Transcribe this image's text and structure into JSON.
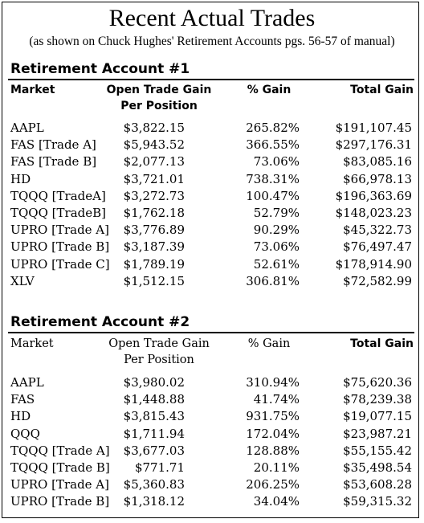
{
  "title": "Recent Actual Trades",
  "subtitle": "(as shown on Chuck Hughes' Retirement Accounts pgs. 56-57 of manual)",
  "account1": {
    "heading": "Retirement Account #1",
    "headers": {
      "market": "Market",
      "open_gain_1": "Open Trade Gain",
      "open_gain_2": "Per Position",
      "pct_gain": "% Gain",
      "total_gain": "Total Gain"
    },
    "rows": [
      {
        "market": "AAPL",
        "open": "$3,822.15",
        "pct": "265.82%",
        "total": "$191,107.45"
      },
      {
        "market": "FAS [Trade A]",
        "open": "$5,943.52",
        "pct": "366.55%",
        "total": "$297,176.31"
      },
      {
        "market": "FAS [Trade B]",
        "open": "$2,077.13",
        "pct": "73.06%",
        "total": "$83,085.16"
      },
      {
        "market": "HD",
        "open": "$3,721.01",
        "pct": "738.31%",
        "total": "$66,978.13"
      },
      {
        "market": "TQQQ [TradeA]",
        "open": "$3,272.73",
        "pct": "100.47%",
        "total": "$196,363.69"
      },
      {
        "market": "TQQQ [TradeB]",
        "open": "$1,762.18",
        "pct": "52.79%",
        "total": "$148,023.23"
      },
      {
        "market": "UPRO [Trade A]",
        "open": "$3,776.89",
        "pct": "90.29%",
        "total": "$45,322.73"
      },
      {
        "market": "UPRO [Trade B]",
        "open": "$3,187.39",
        "pct": "73.06%",
        "total": "$76,497.47"
      },
      {
        "market": "UPRO [Trade C]",
        "open": "$1,789.19",
        "pct": "52.61%",
        "total": "$178,914.90"
      },
      {
        "market": "XLV",
        "open": "$1,512.15",
        "pct": "306.81%",
        "total": "$72,582.99"
      }
    ]
  },
  "account2": {
    "heading": "Retirement Account #2",
    "headers": {
      "market": "Market",
      "open_gain_1": "Open Trade Gain",
      "open_gain_2": "Per Position",
      "pct_gain": "% Gain",
      "total_gain": "Total Gain"
    },
    "rows": [
      {
        "market": "AAPL",
        "open": "$3,980.02",
        "pct": "310.94%",
        "total": "$75,620.36"
      },
      {
        "market": "FAS",
        "open": "$1,448.88",
        "pct": "41.74%",
        "total": "$78,239.38"
      },
      {
        "market": "HD",
        "open": "$3,815.43",
        "pct": "931.75%",
        "total": "$19,077.15"
      },
      {
        "market": "QQQ",
        "open": "$1,711.94",
        "pct": "172.04%",
        "total": "$23,987.21"
      },
      {
        "market": "TQQQ [Trade A]",
        "open": "$3,677.03",
        "pct": "128.88%",
        "total": "$55,155.42"
      },
      {
        "market": "TQQQ [Trade B]",
        "open": "$771.71",
        "pct": "20.11%",
        "total": "$35,498.54"
      },
      {
        "market": "UPRO [Trade A]",
        "open": "$5,360.83",
        "pct": "206.25%",
        "total": "$53,608.28"
      },
      {
        "market": "UPRO [Trade B]",
        "open": "$1,318.12",
        "pct": "34.04%",
        "total": "$59,315.32"
      }
    ]
  }
}
